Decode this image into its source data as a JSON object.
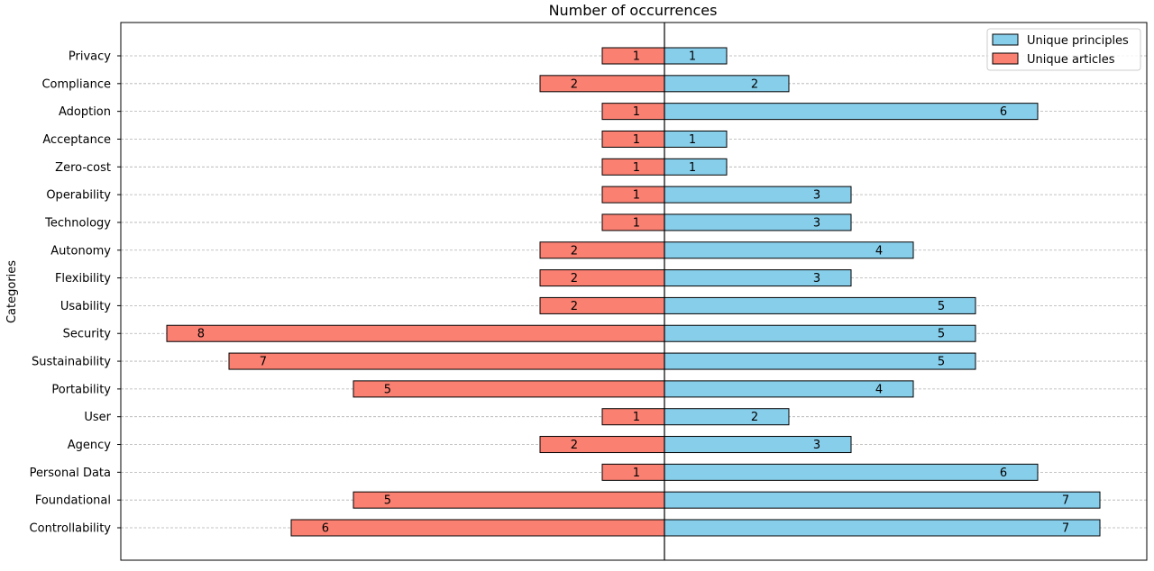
{
  "chart_data": {
    "type": "bar",
    "orientation": "horizontal-diverging",
    "title": "Number of occurrences",
    "xlabel": "",
    "ylabel": "Categories",
    "categories": [
      "Privacy",
      "Compliance",
      "Adoption",
      "Acceptance",
      "Zero-cost",
      "Operability",
      "Technology",
      "Autonomy",
      "Flexibility",
      "Usability",
      "Security",
      "Sustainability",
      "Portability",
      "User",
      "Agency",
      "Personal Data",
      "Foundational",
      "Controllability"
    ],
    "series": [
      {
        "name": "Unique principles",
        "side": "right",
        "color": "#87ceeb",
        "values": [
          1,
          2,
          6,
          1,
          1,
          3,
          3,
          4,
          3,
          5,
          5,
          5,
          4,
          2,
          3,
          6,
          7,
          7
        ]
      },
      {
        "name": "Unique articles",
        "side": "left",
        "color": "#fa8072",
        "values": [
          1,
          2,
          1,
          1,
          1,
          1,
          1,
          2,
          2,
          2,
          8,
          7,
          5,
          1,
          2,
          1,
          5,
          6
        ]
      }
    ],
    "xlim": [
      -8.8,
      7.8
    ],
    "grid": "horizontal dashed",
    "legend_position": "top-right"
  }
}
